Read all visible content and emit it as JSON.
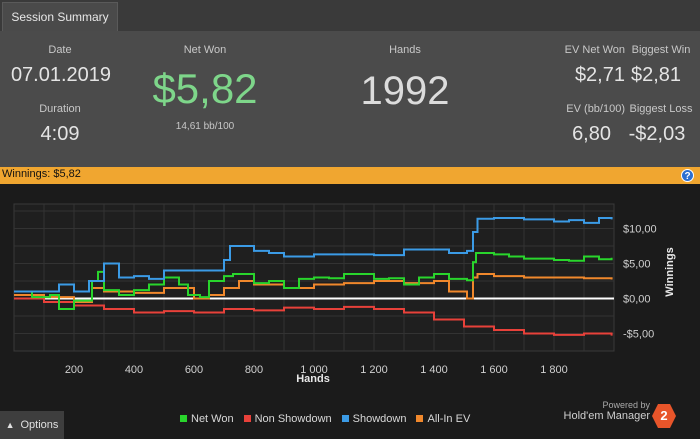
{
  "tab": {
    "label": "Session Summary"
  },
  "summary": {
    "date_label": "Date",
    "date_value": "07.01.2019",
    "duration_label": "Duration",
    "duration_value": "4:09",
    "netwon_label": "Net Won",
    "netwon_value": "$5,82",
    "netwon_sub": "14,61 bb/100",
    "hands_label": "Hands",
    "hands_value": "1992",
    "evnet_label": "EV Net Won",
    "evnet_value": "$2,71",
    "bigwin_label": "Biggest Win",
    "bigwin_value": "$2,81",
    "evbb_label": "EV (bb/100)",
    "evbb_value": "6,80",
    "bigloss_label": "Biggest Loss",
    "bigloss_value": "-$2,03"
  },
  "winbar": {
    "label": "Winnings:  $5,82",
    "help": "?"
  },
  "options": {
    "label": "Options"
  },
  "powered": {
    "line1": "Powered by",
    "line2": "Hold'em Manager",
    "logo": "2"
  },
  "colors": {
    "net_won": "#29d52c",
    "non_showdown": "#e8413a",
    "showdown": "#3b9be6",
    "allin_ev": "#f0882c",
    "netwon_text": "#7ed68a"
  },
  "chart_data": {
    "type": "line",
    "xlabel": "Hands",
    "ylabel": "Winnings",
    "xlim": [
      0,
      2000
    ],
    "ylim": [
      -7.5,
      13.5
    ],
    "x_ticks": [
      200,
      400,
      600,
      800,
      1000,
      1200,
      1400,
      1600,
      1800
    ],
    "x_tick_labels": [
      "200",
      "400",
      "600",
      "800",
      "1 000",
      "1 200",
      "1 400",
      "1 600",
      "1 800"
    ],
    "y_ticks": [
      10,
      5,
      0,
      -5
    ],
    "y_tick_labels": [
      "$10,00",
      "$5,00",
      "$0,00",
      "-$5,00"
    ],
    "grid": true,
    "legend_position": "bottom",
    "series": [
      {
        "name": "Net Won",
        "key": "net_won",
        "x": [
          0,
          60,
          120,
          150,
          200,
          260,
          280,
          300,
          350,
          400,
          450,
          500,
          550,
          580,
          620,
          650,
          700,
          730,
          800,
          850,
          900,
          950,
          1000,
          1050,
          1100,
          1150,
          1200,
          1250,
          1300,
          1350,
          1400,
          1450,
          1510,
          1530,
          1540,
          1600,
          1650,
          1700,
          1750,
          1800,
          1850,
          1900,
          1950,
          1992
        ],
        "y": [
          1,
          0.2,
          0.5,
          -1.5,
          -0.3,
          2.5,
          3.8,
          1.2,
          0.5,
          1.2,
          2,
          3,
          2,
          0.5,
          0.2,
          2.5,
          3.2,
          3.5,
          2.2,
          2.5,
          1.5,
          2.8,
          3,
          2.9,
          3.5,
          3.5,
          2.8,
          2.9,
          2,
          3,
          3.5,
          2.8,
          2.6,
          5.2,
          6.5,
          6.3,
          6,
          5.7,
          5.7,
          5.5,
          5.4,
          6,
          5.6,
          5.82
        ]
      },
      {
        "name": "Non Showdown",
        "key": "non_showdown",
        "x": [
          0,
          100,
          200,
          300,
          400,
          500,
          600,
          700,
          800,
          900,
          1000,
          1100,
          1200,
          1300,
          1400,
          1500,
          1600,
          1700,
          1800,
          1900,
          1992
        ],
        "y": [
          0,
          -0.5,
          -1,
          -1.5,
          -2,
          -1.8,
          -2,
          -1.5,
          -1.7,
          -1.3,
          -1.5,
          -1.2,
          -1.5,
          -2,
          -3,
          -4,
          -4.5,
          -5,
          -5.2,
          -5,
          -5.3
        ]
      },
      {
        "name": "Showdown",
        "key": "showdown",
        "x": [
          0,
          100,
          150,
          200,
          250,
          300,
          350,
          400,
          450,
          500,
          600,
          650,
          700,
          720,
          760,
          800,
          850,
          900,
          1000,
          1100,
          1200,
          1300,
          1400,
          1450,
          1510,
          1530,
          1545,
          1600,
          1700,
          1800,
          1850,
          1900,
          1950,
          1992
        ],
        "y": [
          1,
          1,
          2,
          1,
          2.5,
          5,
          3,
          3.2,
          2.8,
          4,
          4,
          4,
          5.5,
          7.5,
          7.5,
          6.8,
          6.5,
          6,
          6.3,
          6.3,
          6.2,
          7,
          7,
          6.5,
          6.8,
          9.5,
          11.4,
          11.5,
          11.3,
          11,
          11.2,
          10.8,
          11.5,
          11.3
        ]
      },
      {
        "name": "All-In EV",
        "key": "allin_ev",
        "x": [
          0,
          100,
          200,
          260,
          300,
          400,
          500,
          600,
          650,
          700,
          750,
          800,
          900,
          1000,
          1100,
          1200,
          1300,
          1400,
          1450,
          1510,
          1530,
          1545,
          1600,
          1700,
          1800,
          1900,
          1992
        ],
        "y": [
          0.5,
          0.2,
          -0.5,
          1.5,
          1,
          0.8,
          1.5,
          0,
          0.5,
          1.5,
          2.5,
          2,
          1.5,
          2,
          2.2,
          2.5,
          2.2,
          2.5,
          1,
          0,
          3,
          3.5,
          3.2,
          3,
          3,
          2.9,
          2.71
        ]
      }
    ]
  }
}
